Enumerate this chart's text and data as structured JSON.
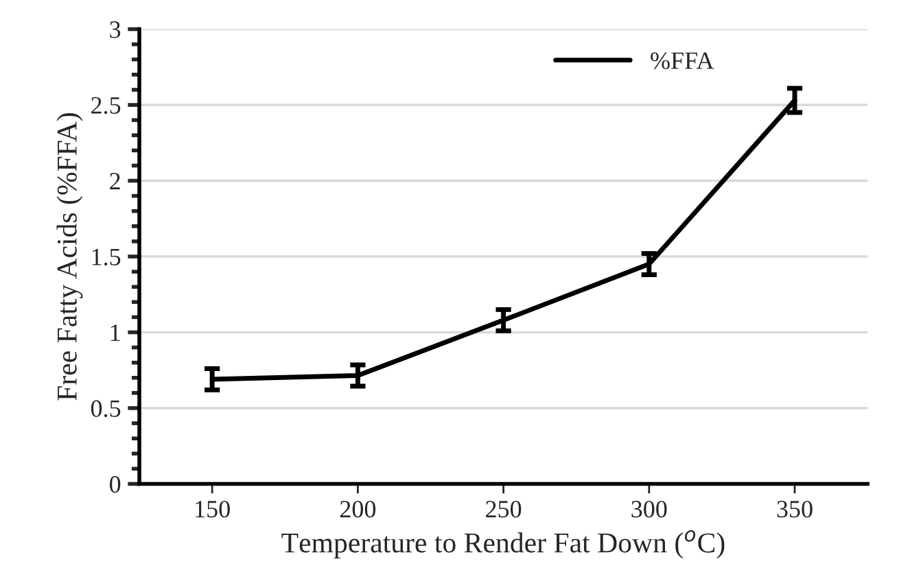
{
  "chart_data": {
    "type": "line",
    "categories": [
      "150",
      "200",
      "250",
      "300",
      "350"
    ],
    "series": [
      {
        "name": "%FFA",
        "color": "#000000",
        "values": [
          0.69,
          0.715,
          1.08,
          1.45,
          2.53
        ],
        "errors": [
          0.07,
          0.07,
          0.07,
          0.07,
          0.08
        ]
      }
    ],
    "xlabel": "Temperature to Render Fat Down ($^{o}$C)",
    "ylabel": "Free Fatty Acids (%FFA)",
    "ylim": [
      0,
      3
    ],
    "yticks": [
      0,
      0.5,
      1,
      1.5,
      2,
      2.5,
      3
    ],
    "grid": "y",
    "legend": "top right",
    "marker": "none",
    "line_style": "solid"
  }
}
